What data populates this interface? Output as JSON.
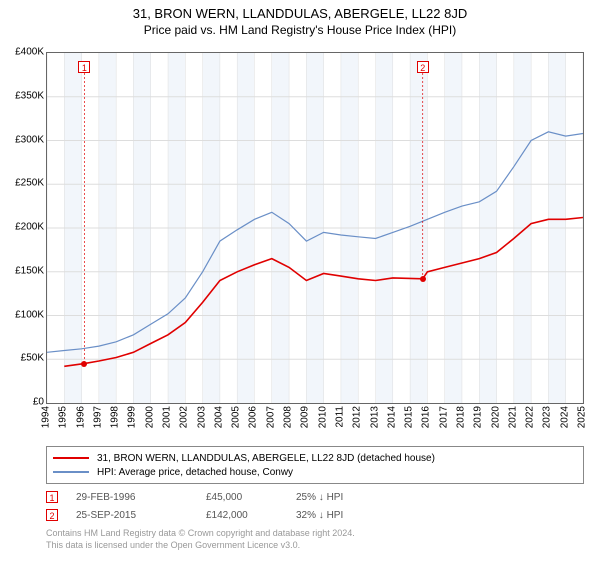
{
  "header": {
    "title": "31, BRON WERN, LLANDDULAS, ABERGELE, LL22 8JD",
    "subtitle": "Price paid vs. HM Land Registry's House Price Index (HPI)"
  },
  "chart": {
    "type": "line",
    "background_color": "#ffffff",
    "grid_color": "#dddddd",
    "border_color": "#666666",
    "shaded_band_color": "#f2f6fb",
    "x_years": [
      1994,
      1995,
      1996,
      1997,
      1998,
      1999,
      2000,
      2001,
      2002,
      2003,
      2004,
      2005,
      2006,
      2007,
      2008,
      2009,
      2010,
      2011,
      2012,
      2013,
      2014,
      2015,
      2016,
      2017,
      2018,
      2019,
      2020,
      2021,
      2022,
      2023,
      2024,
      2025
    ],
    "xlim": [
      1994,
      2025
    ],
    "ylim": [
      0,
      400000
    ],
    "ytick_step": 50000,
    "ytick_labels": [
      "£0",
      "£50K",
      "£100K",
      "£150K",
      "£200K",
      "£250K",
      "£300K",
      "£350K",
      "£400K"
    ],
    "tick_fontsize": 10,
    "series": [
      {
        "name": "property",
        "label": "31, BRON WERN, LLANDDULAS, ABERGELE, LL22 8JD (detached house)",
        "color": "#e00000",
        "line_width": 1.6,
        "points": [
          [
            1995,
            42000
          ],
          [
            1996.16,
            45000
          ],
          [
            1997,
            48000
          ],
          [
            1998,
            52000
          ],
          [
            1999,
            58000
          ],
          [
            2000,
            68000
          ],
          [
            2001,
            78000
          ],
          [
            2002,
            92000
          ],
          [
            2003,
            115000
          ],
          [
            2004,
            140000
          ],
          [
            2005,
            150000
          ],
          [
            2006,
            158000
          ],
          [
            2007,
            165000
          ],
          [
            2008,
            155000
          ],
          [
            2009,
            140000
          ],
          [
            2010,
            148000
          ],
          [
            2011,
            145000
          ],
          [
            2012,
            142000
          ],
          [
            2013,
            140000
          ],
          [
            2014,
            143000
          ],
          [
            2015.73,
            142000
          ],
          [
            2016,
            150000
          ],
          [
            2017,
            155000
          ],
          [
            2018,
            160000
          ],
          [
            2019,
            165000
          ],
          [
            2020,
            172000
          ],
          [
            2021,
            188000
          ],
          [
            2022,
            205000
          ],
          [
            2023,
            210000
          ],
          [
            2024,
            210000
          ],
          [
            2025,
            212000
          ]
        ]
      },
      {
        "name": "hpi",
        "label": "HPI: Average price, detached house, Conwy",
        "color": "#6a8fc7",
        "line_width": 1.2,
        "points": [
          [
            1994,
            58000
          ],
          [
            1995,
            60000
          ],
          [
            1996,
            62000
          ],
          [
            1997,
            65000
          ],
          [
            1998,
            70000
          ],
          [
            1999,
            78000
          ],
          [
            2000,
            90000
          ],
          [
            2001,
            102000
          ],
          [
            2002,
            120000
          ],
          [
            2003,
            150000
          ],
          [
            2004,
            185000
          ],
          [
            2005,
            198000
          ],
          [
            2006,
            210000
          ],
          [
            2007,
            218000
          ],
          [
            2008,
            205000
          ],
          [
            2009,
            185000
          ],
          [
            2010,
            195000
          ],
          [
            2011,
            192000
          ],
          [
            2012,
            190000
          ],
          [
            2013,
            188000
          ],
          [
            2014,
            195000
          ],
          [
            2015,
            202000
          ],
          [
            2016,
            210000
          ],
          [
            2017,
            218000
          ],
          [
            2018,
            225000
          ],
          [
            2019,
            230000
          ],
          [
            2020,
            242000
          ],
          [
            2021,
            270000
          ],
          [
            2022,
            300000
          ],
          [
            2023,
            310000
          ],
          [
            2024,
            305000
          ],
          [
            2025,
            308000
          ]
        ]
      }
    ],
    "markers": [
      {
        "id": "1",
        "x": 1996.16,
        "y": 45000,
        "color": "#e00000"
      },
      {
        "id": "2",
        "x": 2015.73,
        "y": 142000,
        "color": "#e00000"
      }
    ],
    "shaded_bands": [
      [
        1995,
        1996
      ],
      [
        1997,
        1998
      ],
      [
        1999,
        2000
      ],
      [
        2001,
        2002
      ],
      [
        2003,
        2004
      ],
      [
        2005,
        2006
      ],
      [
        2007,
        2008
      ],
      [
        2009,
        2010
      ],
      [
        2011,
        2012
      ],
      [
        2013,
        2014
      ],
      [
        2015,
        2016
      ],
      [
        2017,
        2018
      ],
      [
        2019,
        2020
      ],
      [
        2021,
        2022
      ],
      [
        2023,
        2024
      ]
    ]
  },
  "legend": {
    "border_color": "#888888"
  },
  "events": [
    {
      "id": "1",
      "date": "29-FEB-1996",
      "price": "£45,000",
      "pct": "25% ↓ HPI"
    },
    {
      "id": "2",
      "date": "25-SEP-2015",
      "price": "£142,000",
      "pct": "32% ↓ HPI"
    }
  ],
  "footer": {
    "line1": "Contains HM Land Registry data © Crown copyright and database right 2024.",
    "line2": "This data is licensed under the Open Government Licence v3.0."
  }
}
